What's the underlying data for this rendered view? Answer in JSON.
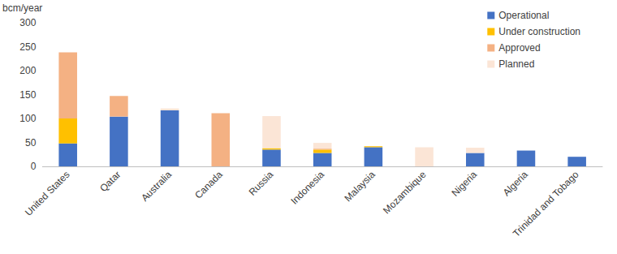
{
  "chart_data": {
    "type": "bar",
    "stacked": true,
    "y_label": "bcm/year",
    "categories": [
      "United States",
      "Qatar",
      "Australia",
      "Canada",
      "Russia",
      "Indonesia",
      "Malaysia",
      "Mozambique",
      "Nigeria",
      "Algeria",
      "Trinidad and Tobago"
    ],
    "series": [
      {
        "name": "Operational",
        "color": "#4472c4",
        "values": [
          48,
          104,
          117,
          0,
          35,
          28,
          40,
          0,
          28,
          33,
          20
        ]
      },
      {
        "name": "Under construction",
        "color": "#ffc000",
        "values": [
          52,
          0,
          0,
          0,
          3,
          7,
          2,
          0,
          0,
          0,
          0
        ]
      },
      {
        "name": "Approved",
        "color": "#f4b183",
        "values": [
          138,
          43,
          0,
          111,
          0,
          2,
          0,
          0,
          0,
          0,
          0
        ]
      },
      {
        "name": "Planned",
        "color": "#fbe5d6",
        "values": [
          0,
          0,
          4,
          0,
          67,
          12,
          0,
          40,
          11,
          0,
          0
        ]
      }
    ],
    "ylim": [
      0,
      300
    ],
    "yticks": [
      0,
      50,
      100,
      150,
      200,
      250,
      300
    ],
    "grid": false,
    "legend": "upper right"
  }
}
